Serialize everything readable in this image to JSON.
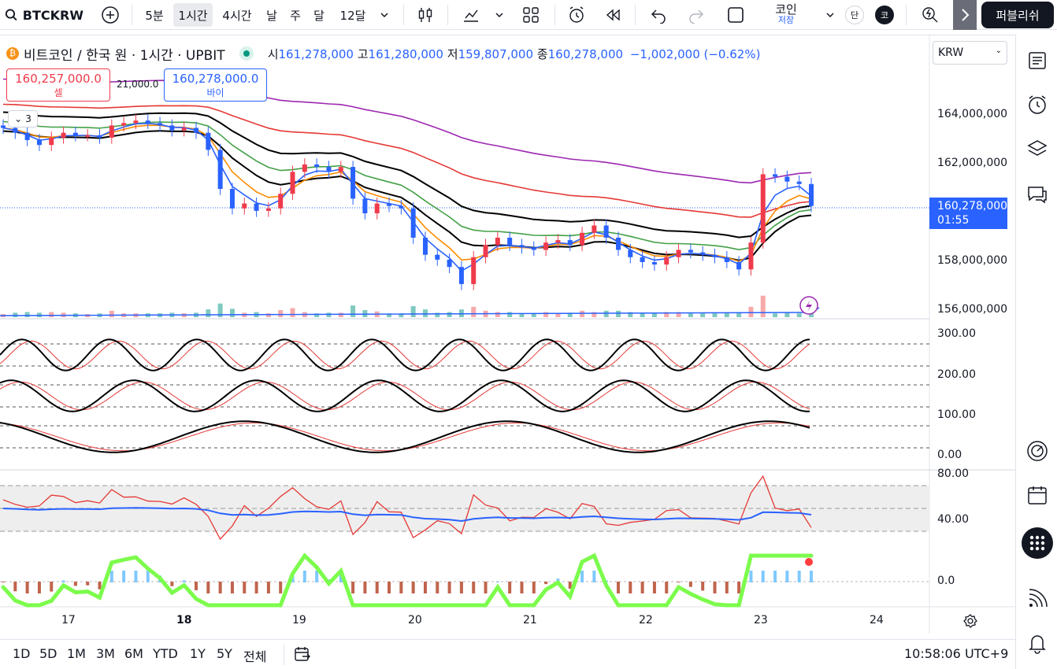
{
  "toolbar": {
    "symbol": "BTCKRW",
    "intervals": [
      "5분",
      "1시간",
      "4시간",
      "날",
      "주",
      "달",
      "12달"
    ],
    "active_interval": "1시간",
    "save_label": "코인",
    "save_sub": "저장",
    "avatar_1": "단",
    "avatar_2": "코",
    "publish": "퍼블리쉬"
  },
  "header": {
    "title": "비트코인 / 한국 원 · 1시간 · UPBIT",
    "open_lbl": "시",
    "open": "161,278,000",
    "high_lbl": "고",
    "high": "161,280,000",
    "low_lbl": "저",
    "low": "159,807,000",
    "close_lbl": "종",
    "close": "160,278,000",
    "change": "−1,002,000 (−0.62%)",
    "currency": "KRW"
  },
  "trade": {
    "sell_price": "160,257,000.0",
    "sell_label": "셀",
    "spread": "21,000.0",
    "buy_price": "160,278,000.0",
    "buy_label": "바이",
    "collapsed_count": "3"
  },
  "price_axis": [
    "164,000,000",
    "162,000,000",
    "158,000,000",
    "156,000,000"
  ],
  "current_price": {
    "price": "160,278,000",
    "countdown": "01:55"
  },
  "stoch_axis": [
    "300.00",
    "200.00",
    "100.00",
    "0.00"
  ],
  "rsi_axis": [
    "80.00",
    "40.00"
  ],
  "macd_axis": [
    "0.0"
  ],
  "time_axis": [
    "17",
    "18",
    "19",
    "20",
    "21",
    "22",
    "23",
    "24"
  ],
  "ranges": [
    "1D",
    "5D",
    "1M",
    "3M",
    "6M",
    "YTD",
    "1Y",
    "5Y",
    "전체"
  ],
  "clock": "10:58:06 UTC+9",
  "colors": {
    "up": "#ef3b4c",
    "down": "#2962ff",
    "accent": "#2962ff"
  },
  "chart_data": {
    "type": "candlestick",
    "symbol": "BTCKRW",
    "interval": "1h",
    "x_ticks": [
      "17",
      "18",
      "19",
      "20",
      "21",
      "22",
      "23",
      "24"
    ],
    "ylim": [
      155500000,
      165500000
    ],
    "closes": [
      163500000,
      163300000,
      163000000,
      162800000,
      163100000,
      163300000,
      163200000,
      163200000,
      163100000,
      163600000,
      163700000,
      163800000,
      163700000,
      163600000,
      163400000,
      163500000,
      163300000,
      162600000,
      161000000,
      160200000,
      160400000,
      160100000,
      160200000,
      160800000,
      161700000,
      162000000,
      161900000,
      161700000,
      161900000,
      160600000,
      160000000,
      160400000,
      160300000,
      160200000,
      159000000,
      158300000,
      158100000,
      157800000,
      157100000,
      158200000,
      158700000,
      159000000,
      158700000,
      158600000,
      158500000,
      158800000,
      158900000,
      158700000,
      159200000,
      159500000,
      159000000,
      158500000,
      158200000,
      158000000,
      157900000,
      158200000,
      158500000,
      158400000,
      158300000,
      158200000,
      158000000,
      157700000,
      158800000,
      161600000,
      161500000,
      161300000,
      161200000,
      160300000
    ]
  }
}
